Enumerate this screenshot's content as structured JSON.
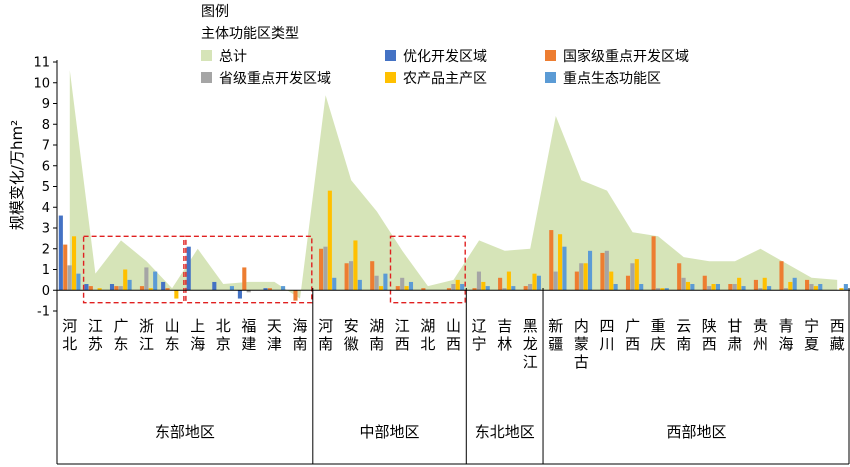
{
  "chart_data": {
    "type": "bar",
    "legend_title": "图例",
    "legend_subtitle": "主体功能区类型",
    "ylabel": "规模变化/万hm²",
    "ylim": [
      -1,
      11
    ],
    "yticks": [
      -1,
      0,
      1,
      2,
      3,
      4,
      5,
      6,
      7,
      8,
      9,
      10,
      11
    ],
    "regions": [
      {
        "name": "东部地区",
        "count": 10
      },
      {
        "name": "中部地区",
        "count": 6
      },
      {
        "name": "东北地区",
        "count": 3
      },
      {
        "name": "西部地区",
        "count": 12
      }
    ],
    "provinces": [
      {
        "name": "河北",
        "lines": [
          "河",
          "北"
        ]
      },
      {
        "name": "江苏",
        "lines": [
          "江",
          "苏"
        ]
      },
      {
        "name": "广东",
        "lines": [
          "广",
          "东"
        ]
      },
      {
        "name": "浙江",
        "lines": [
          "浙",
          "江"
        ]
      },
      {
        "name": "山东",
        "lines": [
          "山",
          "东"
        ]
      },
      {
        "name": "上海",
        "lines": [
          "上",
          "海"
        ]
      },
      {
        "name": "北京",
        "lines": [
          "北",
          "京"
        ]
      },
      {
        "name": "福建",
        "lines": [
          "福",
          "建"
        ]
      },
      {
        "name": "天津",
        "lines": [
          "天",
          "津"
        ]
      },
      {
        "name": "海南",
        "lines": [
          "海",
          "南"
        ]
      },
      {
        "name": "河南",
        "lines": [
          "河",
          "南"
        ]
      },
      {
        "name": "安徽",
        "lines": [
          "安",
          "徽"
        ]
      },
      {
        "name": "湖南",
        "lines": [
          "湖",
          "南"
        ]
      },
      {
        "name": "江西",
        "lines": [
          "江",
          "西"
        ]
      },
      {
        "name": "湖北",
        "lines": [
          "湖",
          "北"
        ]
      },
      {
        "name": "山西",
        "lines": [
          "山",
          "西"
        ]
      },
      {
        "name": "辽宁",
        "lines": [
          "辽",
          "宁"
        ]
      },
      {
        "name": "吉林",
        "lines": [
          "吉",
          "林"
        ]
      },
      {
        "name": "黑龙江",
        "lines": [
          "黑",
          "龙",
          "江"
        ]
      },
      {
        "name": "新疆",
        "lines": [
          "新",
          "疆"
        ]
      },
      {
        "name": "内蒙古",
        "lines": [
          "内",
          "蒙",
          "古"
        ]
      },
      {
        "name": "四川",
        "lines": [
          "四",
          "川"
        ]
      },
      {
        "name": "广西",
        "lines": [
          "广",
          "西"
        ]
      },
      {
        "name": "重庆",
        "lines": [
          "重",
          "庆"
        ]
      },
      {
        "name": "云南",
        "lines": [
          "云",
          "南"
        ]
      },
      {
        "name": "陕西",
        "lines": [
          "陕",
          "西"
        ]
      },
      {
        "name": "甘肃",
        "lines": [
          "甘",
          "肃"
        ]
      },
      {
        "name": "贵州",
        "lines": [
          "贵",
          "州"
        ]
      },
      {
        "name": "青海",
        "lines": [
          "青",
          "海"
        ]
      },
      {
        "name": "宁夏",
        "lines": [
          "宁",
          "夏"
        ]
      },
      {
        "name": "西藏",
        "lines": [
          "西",
          "藏"
        ]
      }
    ],
    "total_series": {
      "name": "总计",
      "color": "#d6e4b8",
      "values": [
        10.6,
        0.8,
        2.4,
        1.4,
        0.1,
        2.0,
        0.3,
        0.4,
        0.4,
        -0.4,
        9.4,
        5.3,
        3.8,
        1.9,
        0.2,
        0.5,
        2.4,
        1.9,
        2.0,
        8.4,
        5.3,
        4.8,
        2.8,
        2.6,
        1.6,
        1.4,
        1.4,
        2.0,
        1.3,
        0.6,
        0.5
      ]
    },
    "series": [
      {
        "name": "优化开发区域",
        "color": "#4472c4",
        "values": [
          3.6,
          0.3,
          0.3,
          0.0,
          0.4,
          2.1,
          0.4,
          -0.4,
          0.1,
          0.0,
          0,
          0,
          0,
          0,
          0,
          0,
          0,
          0,
          0,
          0,
          0,
          0,
          0,
          0,
          0,
          0,
          0,
          0,
          0,
          0,
          0
        ]
      },
      {
        "name": "国家级重点开发区域",
        "color": "#ed7d31",
        "values": [
          2.2,
          0.2,
          0.2,
          0.2,
          0.1,
          0.0,
          0.0,
          1.1,
          0.1,
          -0.5,
          2.0,
          1.3,
          1.4,
          0.2,
          0.1,
          0.1,
          0.1,
          0.6,
          0.2,
          2.9,
          0.9,
          1.8,
          0.7,
          2.6,
          1.3,
          0.7,
          0.3,
          0.5,
          1.4,
          0.5,
          0.0
        ]
      },
      {
        "name": "省级重点开发区域",
        "color": "#a5a5a5",
        "values": [
          1.2,
          0.0,
          0.2,
          1.1,
          0.0,
          0.0,
          0.0,
          -0.1,
          0.0,
          0.0,
          2.1,
          1.4,
          0.7,
          0.6,
          0.0,
          0.3,
          0.9,
          0.1,
          0.3,
          0.9,
          1.3,
          1.9,
          1.3,
          0.1,
          0.6,
          0.2,
          0.3,
          0.1,
          0.1,
          0.3,
          0.0
        ]
      },
      {
        "name": "农产品主产区",
        "color": "#ffc000",
        "values": [
          2.6,
          0.1,
          1.0,
          0.1,
          -0.4,
          0.0,
          0.0,
          0.0,
          0.0,
          0.0,
          4.8,
          2.4,
          0.2,
          0.2,
          0.0,
          0.5,
          0.4,
          0.9,
          0.8,
          2.7,
          1.3,
          0.9,
          1.5,
          0.1,
          0.4,
          0.3,
          0.6,
          0.6,
          0.4,
          0.2,
          0.1
        ]
      },
      {
        "name": "重点生态功能区",
        "color": "#5b9bd5",
        "values": [
          0.8,
          0.0,
          0.5,
          0.9,
          0.0,
          0.0,
          0.2,
          0.0,
          0.2,
          0.0,
          0.6,
          0.5,
          0.8,
          0.4,
          0.0,
          0.3,
          0.2,
          0.2,
          0.7,
          2.1,
          1.9,
          0.3,
          0.3,
          0.1,
          0.3,
          0.3,
          0.2,
          0.2,
          0.6,
          0.3,
          0.3
        ]
      }
    ],
    "highlight_boxes": [
      [
        1,
        4
      ],
      [
        5,
        9
      ],
      [
        13,
        15
      ]
    ]
  }
}
